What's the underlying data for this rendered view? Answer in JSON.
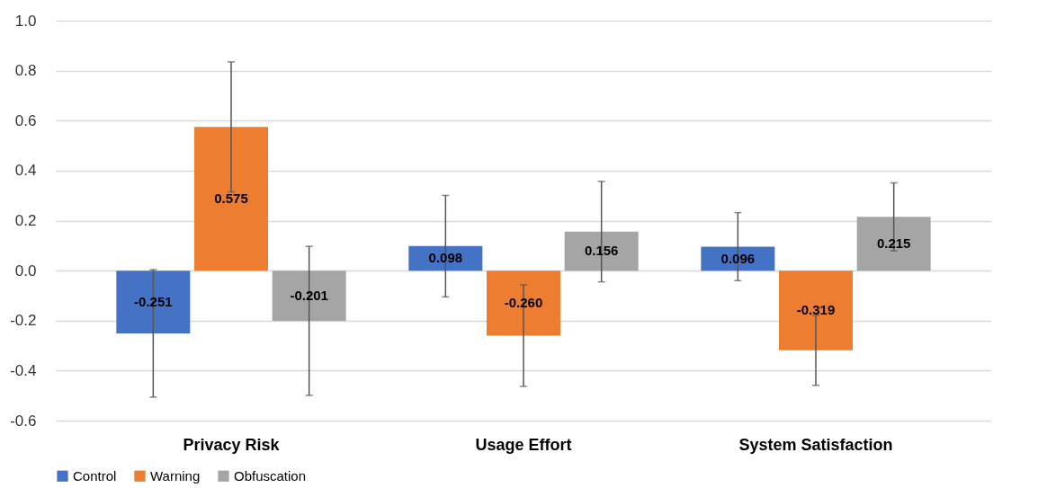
{
  "chart_data": {
    "type": "bar",
    "categories": [
      "Privacy Risk",
      "Usage Effort",
      "System Satisfaction"
    ],
    "series": [
      {
        "name": "Control",
        "color": "#4472c4",
        "values": [
          -0.251,
          0.098,
          0.096
        ],
        "value_labels": [
          "-0.251",
          "0.098",
          "0.096"
        ],
        "errors": [
          0.255,
          0.203,
          0.136
        ]
      },
      {
        "name": "Warning",
        "color": "#ed7d31",
        "values": [
          0.575,
          -0.26,
          -0.319
        ],
        "value_labels": [
          "0.575",
          "-0.260",
          "-0.319"
        ],
        "errors": [
          0.26,
          0.203,
          0.14
        ]
      },
      {
        "name": "Obfuscation",
        "color": "#a5a5a5",
        "values": [
          -0.201,
          0.156,
          0.215
        ],
        "value_labels": [
          "-0.201",
          "0.156",
          "0.215"
        ],
        "errors": [
          0.298,
          0.201,
          0.136
        ]
      }
    ],
    "ylim": [
      -0.6,
      1.0
    ],
    "yticks": [
      {
        "value": -0.6,
        "label": "-0.6"
      },
      {
        "value": -0.4,
        "label": "-0.4"
      },
      {
        "value": -0.2,
        "label": "-0.2"
      },
      {
        "value": 0,
        "label": "0.0"
      },
      {
        "value": 0.2,
        "label": "0.2"
      },
      {
        "value": 0.4,
        "label": "0.4"
      },
      {
        "value": 0.6,
        "label": "0.6"
      },
      {
        "value": 0.8,
        "label": "0.8"
      },
      {
        "value": 1.0,
        "label": "1.0"
      }
    ],
    "grid": "y",
    "legend": "bottom"
  }
}
